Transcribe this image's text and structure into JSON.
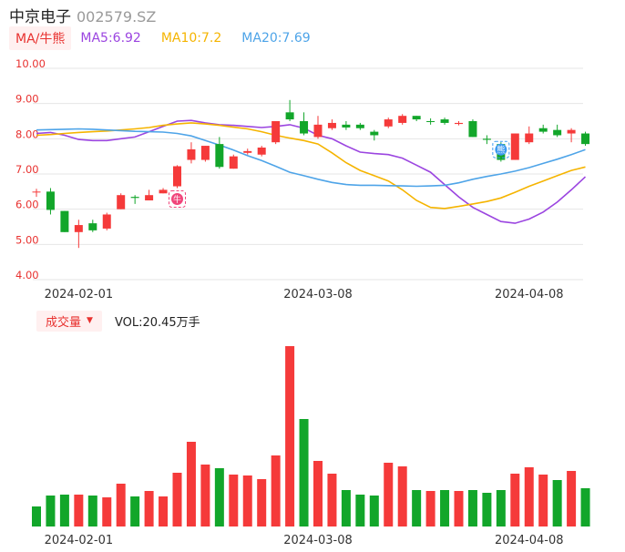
{
  "header": {
    "name": "中京电子",
    "code": "002579.SZ"
  },
  "ma_bar": {
    "type_label": "MA/牛熊",
    "items": [
      {
        "label": "MA5:6.92",
        "color": "#9b45e0"
      },
      {
        "label": "MA10:7.2",
        "color": "#f5b400"
      },
      {
        "label": "MA20:7.69",
        "color": "#4ea4e8"
      }
    ]
  },
  "volume_bar": {
    "type_label": "成交量",
    "dropdown_icon": "triangle-down-icon",
    "value_label": "VOL:20.45万手"
  },
  "colors": {
    "up": "#f53a3a",
    "down": "#12a62a",
    "grid": "#e6e6e6"
  },
  "markers": [
    {
      "index": 10,
      "label": "牛",
      "icon": "bull-icon",
      "color": "#f0457a"
    },
    {
      "index": 33,
      "label": "熊",
      "icon": "bear-icon",
      "color": "#3d9af0"
    }
  ],
  "chart_data": [
    {
      "type": "candlestick",
      "y_ticks": [
        "4.00",
        "5.00",
        "6.00",
        "7.00",
        "8.00",
        "9.00",
        "10.00"
      ],
      "ylim": [
        4.0,
        10.0
      ],
      "x_ticks": [
        {
          "index": 3,
          "label": "2024-02-01"
        },
        {
          "index": 20,
          "label": "2024-03-08"
        },
        {
          "index": 35,
          "label": "2024-04-08"
        }
      ],
      "candles": [
        {
          "o": 6.5,
          "c": 6.5,
          "h": 6.58,
          "l": 6.35
        },
        {
          "o": 6.5,
          "c": 5.98,
          "h": 6.6,
          "l": 5.85
        },
        {
          "o": 5.95,
          "c": 5.35,
          "h": 5.95,
          "l": 5.35
        },
        {
          "o": 5.35,
          "c": 5.55,
          "h": 5.7,
          "l": 4.9
        },
        {
          "o": 5.6,
          "c": 5.4,
          "h": 5.7,
          "l": 5.35
        },
        {
          "o": 5.45,
          "c": 5.85,
          "h": 5.9,
          "l": 5.4
        },
        {
          "o": 6.0,
          "c": 6.4,
          "h": 6.45,
          "l": 6.0
        },
        {
          "o": 6.35,
          "c": 6.32,
          "h": 6.4,
          "l": 6.15
        },
        {
          "o": 6.25,
          "c": 6.4,
          "h": 6.55,
          "l": 6.25
        },
        {
          "o": 6.45,
          "c": 6.55,
          "h": 6.6,
          "l": 6.45
        },
        {
          "o": 6.65,
          "c": 7.22,
          "h": 7.25,
          "l": 6.6
        },
        {
          "o": 7.4,
          "c": 7.7,
          "h": 7.9,
          "l": 7.3
        },
        {
          "o": 7.4,
          "c": 7.8,
          "h": 7.8,
          "l": 7.35
        },
        {
          "o": 7.85,
          "c": 7.2,
          "h": 8.05,
          "l": 7.15
        },
        {
          "o": 7.15,
          "c": 7.5,
          "h": 7.55,
          "l": 7.15
        },
        {
          "o": 7.6,
          "c": 7.65,
          "h": 7.72,
          "l": 7.55
        },
        {
          "o": 7.55,
          "c": 7.75,
          "h": 7.8,
          "l": 7.5
        },
        {
          "o": 7.9,
          "c": 8.5,
          "h": 8.5,
          "l": 7.85
        },
        {
          "o": 8.75,
          "c": 8.55,
          "h": 9.1,
          "l": 8.5
        },
        {
          "o": 8.5,
          "c": 8.15,
          "h": 8.75,
          "l": 8.1
        },
        {
          "o": 8.05,
          "c": 8.4,
          "h": 8.65,
          "l": 8.0
        },
        {
          "o": 8.3,
          "c": 8.45,
          "h": 8.55,
          "l": 8.25
        },
        {
          "o": 8.4,
          "c": 8.32,
          "h": 8.5,
          "l": 8.25
        },
        {
          "o": 8.4,
          "c": 8.3,
          "h": 8.45,
          "l": 8.25
        },
        {
          "o": 8.2,
          "c": 8.1,
          "h": 8.25,
          "l": 7.95
        },
        {
          "o": 8.35,
          "c": 8.55,
          "h": 8.6,
          "l": 8.3
        },
        {
          "o": 8.45,
          "c": 8.65,
          "h": 8.7,
          "l": 8.4
        },
        {
          "o": 8.65,
          "c": 8.55,
          "h": 8.65,
          "l": 8.5
        },
        {
          "o": 8.5,
          "c": 8.48,
          "h": 8.58,
          "l": 8.4
        },
        {
          "o": 8.55,
          "c": 8.45,
          "h": 8.6,
          "l": 8.4
        },
        {
          "o": 8.42,
          "c": 8.45,
          "h": 8.5,
          "l": 8.38
        },
        {
          "o": 8.5,
          "c": 8.05,
          "h": 8.55,
          "l": 8.05
        },
        {
          "o": 8.0,
          "c": 7.97,
          "h": 8.1,
          "l": 7.85
        },
        {
          "o": 7.85,
          "c": 7.4,
          "h": 7.9,
          "l": 7.35
        },
        {
          "o": 7.4,
          "c": 8.15,
          "h": 8.15,
          "l": 7.4
        },
        {
          "o": 7.9,
          "c": 8.15,
          "h": 8.35,
          "l": 7.85
        },
        {
          "o": 8.3,
          "c": 8.2,
          "h": 8.4,
          "l": 8.15
        },
        {
          "o": 8.25,
          "c": 8.1,
          "h": 8.4,
          "l": 8.05
        },
        {
          "o": 8.15,
          "c": 8.25,
          "h": 8.3,
          "l": 7.9
        },
        {
          "o": 8.15,
          "c": 7.85,
          "h": 8.2,
          "l": 7.8
        }
      ],
      "ma_lines": [
        {
          "name": "MA5",
          "color": "#9b45e0",
          "values": [
            8.15,
            8.18,
            8.1,
            7.98,
            7.95,
            7.95,
            8.0,
            8.05,
            8.2,
            8.35,
            8.5,
            8.52,
            8.45,
            8.4,
            8.38,
            8.35,
            8.32,
            8.35,
            8.4,
            8.3,
            8.1,
            8.0,
            7.8,
            7.62,
            7.58,
            7.55,
            7.45,
            7.25,
            7.05,
            6.7,
            6.35,
            6.05,
            5.85,
            5.65,
            5.6,
            5.72,
            5.92,
            6.2,
            6.55,
            6.92
          ]
        },
        {
          "name": "MA10",
          "color": "#f5b400",
          "values": [
            8.1,
            8.12,
            8.15,
            8.18,
            8.2,
            8.22,
            8.25,
            8.28,
            8.32,
            8.38,
            8.42,
            8.45,
            8.42,
            8.38,
            8.33,
            8.28,
            8.2,
            8.1,
            8.02,
            7.95,
            7.85,
            7.6,
            7.32,
            7.1,
            6.95,
            6.8,
            6.55,
            6.25,
            6.05,
            6.02,
            6.08,
            6.15,
            6.22,
            6.32,
            6.48,
            6.65,
            6.8,
            6.95,
            7.1,
            7.2
          ]
        },
        {
          "name": "MA20",
          "color": "#4ea4e8",
          "values": [
            8.25,
            8.26,
            8.27,
            8.28,
            8.27,
            8.25,
            8.23,
            8.21,
            8.2,
            8.19,
            8.15,
            8.08,
            7.95,
            7.82,
            7.68,
            7.52,
            7.38,
            7.22,
            7.05,
            6.95,
            6.85,
            6.76,
            6.7,
            6.68,
            6.68,
            6.67,
            6.66,
            6.65,
            6.66,
            6.68,
            6.75,
            6.85,
            6.93,
            7.0,
            7.08,
            7.18,
            7.3,
            7.42,
            7.55,
            7.69
          ]
        }
      ]
    },
    {
      "type": "bar",
      "ylabel": "成交量",
      "values": [
        22,
        34,
        35,
        35,
        34,
        32,
        47,
        33,
        39,
        33,
        59,
        93,
        68,
        64,
        57,
        56,
        52,
        78,
        198,
        118,
        72,
        58,
        40,
        35,
        34,
        70,
        66,
        40,
        39,
        40,
        39,
        40,
        37,
        40,
        58,
        65,
        57,
        51,
        61,
        42
      ],
      "directions": [
        "down",
        "down",
        "down",
        "up",
        "down",
        "up",
        "up",
        "down",
        "up",
        "up",
        "up",
        "up",
        "up",
        "down",
        "up",
        "up",
        "up",
        "up",
        "up",
        "down",
        "up",
        "up",
        "down",
        "down",
        "down",
        "up",
        "up",
        "down",
        "up",
        "down",
        "up",
        "down",
        "down",
        "down",
        "up",
        "up",
        "up",
        "down",
        "up",
        "down"
      ],
      "x_ticks": [
        {
          "index": 3,
          "label": "2024-02-01"
        },
        {
          "index": 20,
          "label": "2024-03-08"
        },
        {
          "index": 35,
          "label": "2024-04-08"
        }
      ]
    }
  ]
}
